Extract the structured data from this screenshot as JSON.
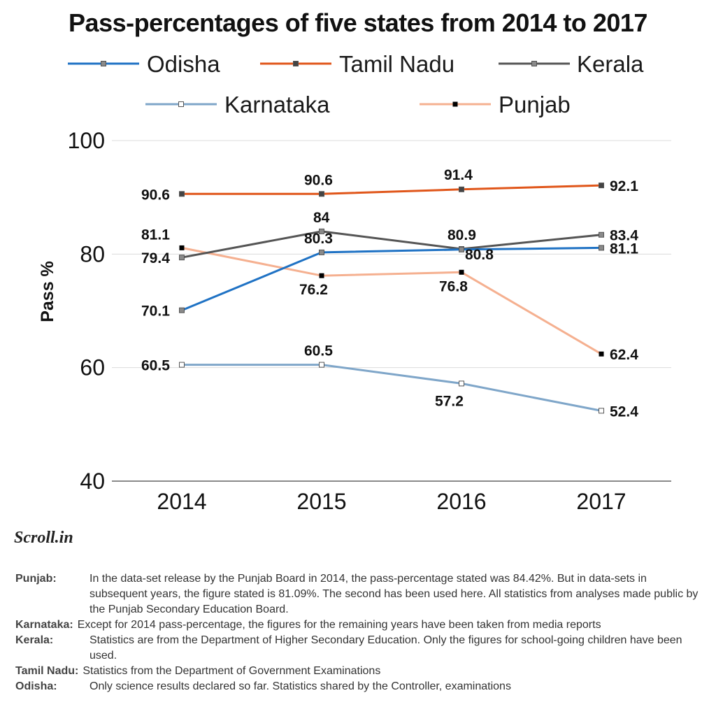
{
  "chart_data": {
    "type": "line",
    "title": "Pass-percentages of five states from 2014 to 2017",
    "ylabel": "Pass %",
    "xlabel": "",
    "categories": [
      "2014",
      "2015",
      "2016",
      "2017"
    ],
    "ylim": [
      40,
      100
    ],
    "yticks": [
      40,
      60,
      80,
      100
    ],
    "grid": "horizontal",
    "legend": "top",
    "series": [
      {
        "name": "Odisha",
        "values": [
          70.1,
          80.3,
          80.8,
          81.1
        ],
        "labels": [
          "70.1",
          "80.3",
          "80.8",
          "81.1"
        ],
        "color": "#1f72c4",
        "marker_fill": "#8a8a8a"
      },
      {
        "name": "Tamil Nadu",
        "values": [
          90.6,
          90.6,
          91.4,
          92.1
        ],
        "labels": [
          "90.6",
          "90.6",
          "91.4",
          "92.1"
        ],
        "color": "#e0561a",
        "marker_fill": "#444444"
      },
      {
        "name": "Kerala",
        "values": [
          79.4,
          84,
          80.9,
          83.4
        ],
        "labels": [
          "79.4",
          "84",
          "80.9",
          "83.4"
        ],
        "color": "#555555",
        "marker_fill": "#8a8a8a"
      },
      {
        "name": "Karnataka",
        "values": [
          60.5,
          60.5,
          57.2,
          52.4
        ],
        "labels": [
          "60.5",
          "60.5",
          "57.2",
          "52.4"
        ],
        "color": "#7fa6c9",
        "marker_fill": "#ffffff"
      },
      {
        "name": "Punjab",
        "values": [
          81.1,
          76.2,
          76.8,
          62.4
        ],
        "labels": [
          "81.1",
          "76.2",
          "76.8",
          "62.4"
        ],
        "color": "#f5b090",
        "marker_fill": "#000000"
      }
    ]
  },
  "brand": "Scroll.in",
  "notes": [
    {
      "state": "Punjab:",
      "text": "In the data-set release by the Punjab Board in 2014, the pass-percentage stated was 84.42%. But in data-sets in subsequent years, the figure stated is 81.09%. The second has been used here. All statistics from analyses made public by the Punjab Secondary Education Board."
    },
    {
      "state": "Karnataka:",
      "text": "Except for 2014 pass-percentage, the figures for the remaining years have been taken from media reports"
    },
    {
      "state": "Kerala:",
      "text": "Statistics are from the Department of Higher Secondary Education. Only the figures for school-going children have been used."
    },
    {
      "state": "Tamil Nadu:",
      "text": "Statistics from the Department of Government Examinations"
    },
    {
      "state": "Odisha:",
      "text": "Only science results declared so far. Statistics shared by the Controller, examinations"
    }
  ]
}
